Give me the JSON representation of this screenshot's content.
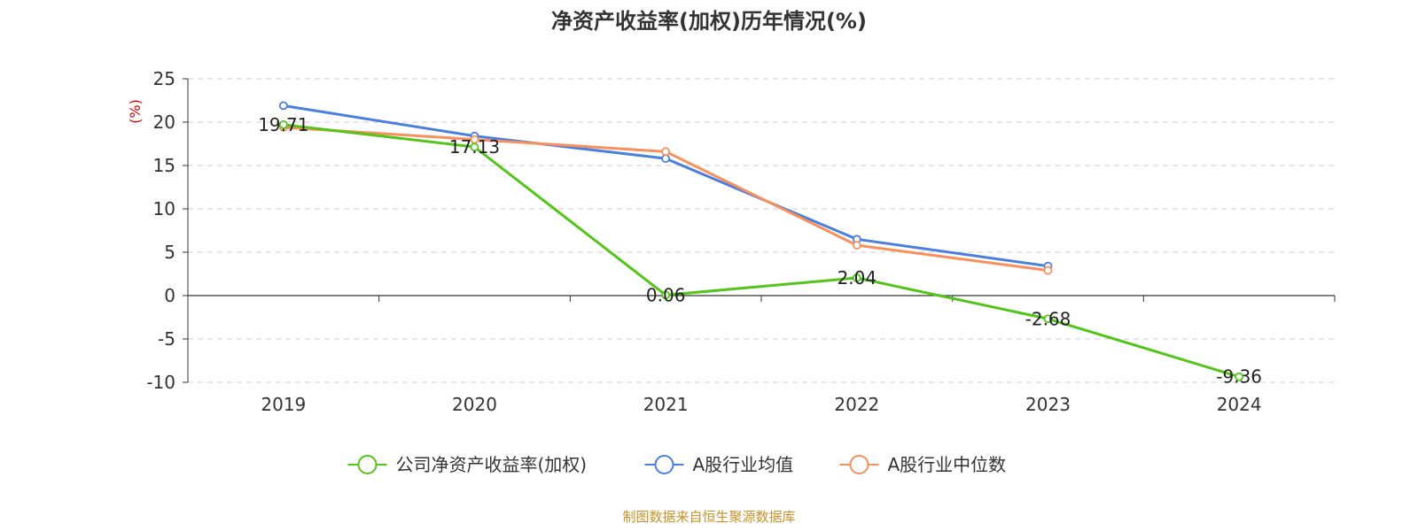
{
  "chart_data": {
    "type": "line",
    "title": "净资产收益率(加权)历年情况(%)",
    "ylabel": "(%)",
    "xlabel": "",
    "categories": [
      "2019",
      "2020",
      "2021",
      "2022",
      "2023",
      "2024"
    ],
    "ylim": [
      -10,
      25
    ],
    "yticks": [
      25,
      20,
      15,
      10,
      5,
      0,
      -5,
      -10
    ],
    "grid": true,
    "legend_position": "bottom",
    "series": [
      {
        "name": "公司净资产收益率(加权)",
        "color": "#52c41a",
        "values": [
          19.71,
          17.13,
          0.06,
          2.04,
          -2.68,
          -9.36
        ],
        "labels": [
          "19.71",
          "17.13",
          "0.06",
          "2.04",
          "-2.68",
          "-9.36"
        ]
      },
      {
        "name": "A股行业均值",
        "color": "#4a7fe0",
        "values": [
          21.9,
          18.4,
          15.8,
          6.5,
          3.4,
          null
        ]
      },
      {
        "name": "A股行业中位数",
        "color": "#f7905c",
        "values": [
          19.4,
          18.0,
          16.6,
          5.8,
          2.9,
          null
        ]
      }
    ],
    "source": "制图数据来自恒生聚源数据库"
  }
}
